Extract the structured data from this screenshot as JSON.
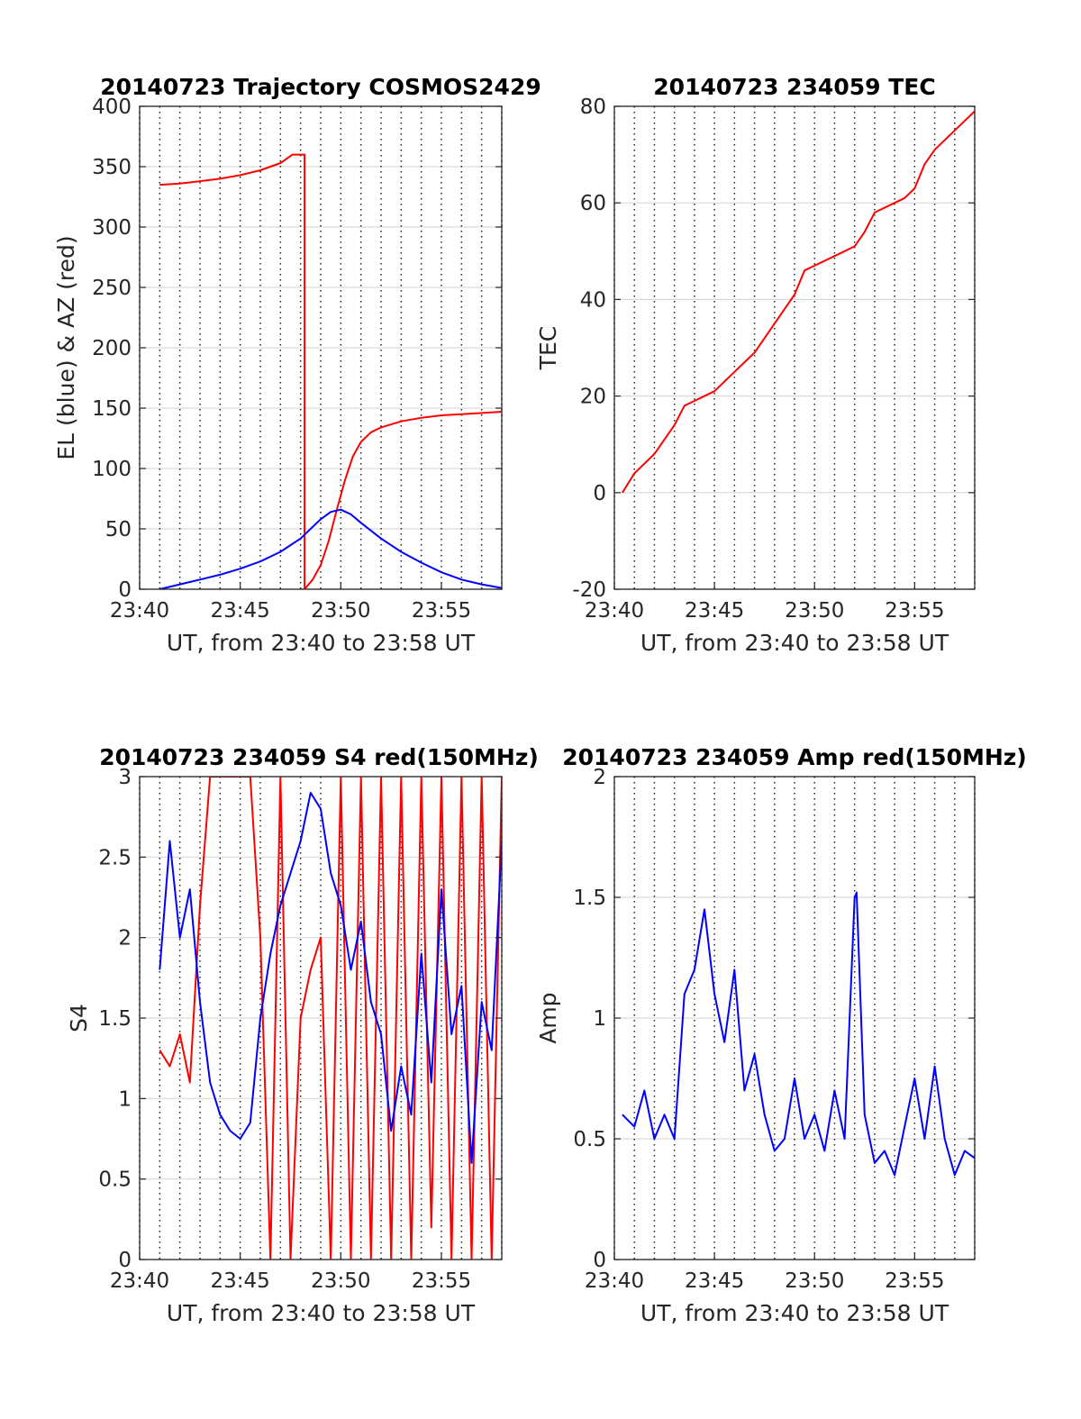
{
  "colors": {
    "az": "#ff0000",
    "el": "#0000ff",
    "tec": "#ff0000",
    "s4_red": "#ff0000",
    "s4_blue": "#0000ff",
    "amp": "#0000ff",
    "grid": "#d9d9d9",
    "frame": "#262626"
  },
  "chart_data": [
    {
      "type": "line",
      "title": "20140723 Trajectory COSMOS2429",
      "xlabel": "UT, from 23:40 to 23:58 UT",
      "ylabel": "EL (blue) & AZ (red)",
      "x_unit": "minutes after 23:40 UT",
      "xlim": [
        0,
        18
      ],
      "ylim": [
        0,
        400
      ],
      "xticks": [
        0,
        5,
        10,
        15
      ],
      "xticklabels": [
        "23:40",
        "23:45",
        "23:50",
        "23:55"
      ],
      "yticks": [
        0,
        50,
        100,
        150,
        200,
        250,
        300,
        350,
        400
      ],
      "yticklabels": [
        "0",
        "50",
        "100",
        "150",
        "200",
        "250",
        "300",
        "350",
        "400"
      ],
      "grid": "x dotted every minute, y solid",
      "series": [
        {
          "name": "AZ",
          "color": "#ff0000",
          "x": [
            1,
            2,
            3,
            4,
            5,
            6,
            7,
            7.6,
            8.2,
            8.2,
            8.6,
            9,
            9.4,
            9.8,
            10.2,
            10.6,
            11,
            11.5,
            12,
            13,
            14,
            15,
            16,
            17,
            18
          ],
          "values": [
            335,
            336,
            338,
            340,
            343,
            347,
            353,
            360,
            360,
            0,
            8,
            20,
            40,
            66,
            90,
            110,
            122,
            130,
            134,
            139,
            142,
            144,
            145,
            146,
            147
          ]
        },
        {
          "name": "EL",
          "color": "#0000ff",
          "x": [
            1,
            2,
            3,
            4,
            5,
            6,
            7,
            8,
            8.5,
            9,
            9.5,
            10,
            10.5,
            11,
            12,
            13,
            14,
            15,
            16,
            17,
            18
          ],
          "values": [
            0,
            4,
            8,
            12,
            17,
            23,
            31,
            42,
            50,
            58,
            64,
            66,
            62,
            55,
            42,
            31,
            22,
            14,
            8,
            4,
            1
          ]
        }
      ]
    },
    {
      "type": "line",
      "title": "20140723 234059 TEC",
      "xlabel": "UT, from 23:40 to 23:58 UT",
      "ylabel": "TEC",
      "x_unit": "minutes after 23:40 UT",
      "xlim": [
        0,
        18
      ],
      "ylim": [
        -20,
        80
      ],
      "xticks": [
        0,
        5,
        10,
        15
      ],
      "xticklabels": [
        "23:40",
        "23:45",
        "23:50",
        "23:55"
      ],
      "yticks": [
        -20,
        0,
        20,
        40,
        60,
        80
      ],
      "yticklabels": [
        "-20",
        "0",
        "20",
        "40",
        "60",
        "80"
      ],
      "grid": "x dotted every minute, y solid",
      "series": [
        {
          "name": "TEC",
          "color": "#ff0000",
          "x": [
            0.4,
            1,
            2,
            3,
            3.5,
            4,
            5,
            6,
            7,
            8,
            8.5,
            9,
            9.5,
            10,
            11,
            11.5,
            12,
            12.5,
            13,
            14,
            14.5,
            15,
            15.5,
            16,
            17,
            18
          ],
          "values": [
            0,
            4,
            8,
            14,
            18,
            19,
            21,
            25,
            29,
            35,
            38,
            41,
            46,
            47,
            49,
            50,
            51,
            54,
            58,
            60,
            61,
            63,
            68,
            71,
            75,
            79
          ]
        }
      ]
    },
    {
      "type": "line",
      "title": "20140723 234059 S4 red(150MHz)",
      "xlabel": "UT, from 23:40 to 23:58 UT",
      "ylabel": "S4",
      "x_unit": "minutes after 23:40 UT",
      "xlim": [
        0,
        18
      ],
      "ylim": [
        0,
        3
      ],
      "xticks": [
        0,
        5,
        10,
        15
      ],
      "xticklabels": [
        "23:40",
        "23:45",
        "23:50",
        "23:55"
      ],
      "yticks": [
        0,
        0.5,
        1,
        1.5,
        2,
        2.5,
        3
      ],
      "yticklabels": [
        "0",
        "0.5",
        "1",
        "1.5",
        "2",
        "2.5",
        "3"
      ],
      "grid": "x dotted every minute, y solid",
      "series": [
        {
          "name": "red",
          "color": "#ff0000",
          "x": [
            1,
            1.5,
            2,
            2.5,
            3,
            3.5,
            4,
            4.5,
            5,
            5.5,
            6,
            6.5,
            7,
            7.5,
            8,
            8.5,
            9,
            9.5,
            10,
            10.5,
            11,
            11.5,
            12,
            12.5,
            13,
            13.5,
            14,
            14.5,
            15,
            15.5,
            16,
            16.5,
            17,
            17.5,
            18
          ],
          "values": [
            1.3,
            1.2,
            1.4,
            1.1,
            2.2,
            3,
            3,
            3,
            3,
            3,
            2.0,
            0,
            3,
            0,
            1.5,
            1.8,
            2.0,
            0,
            3,
            0,
            3,
            0,
            3,
            0,
            3,
            0,
            3,
            0.2,
            3,
            0,
            3,
            0,
            3,
            0,
            3
          ]
        },
        {
          "name": "blue",
          "color": "#0000ff",
          "x": [
            1,
            1.5,
            2,
            2.5,
            3,
            3.5,
            4,
            4.5,
            5,
            5.5,
            6,
            6.5,
            7,
            7.5,
            8,
            8.5,
            9,
            9.5,
            10,
            10.5,
            11,
            11.5,
            12,
            12.5,
            13,
            13.5,
            14,
            14.5,
            15,
            15.5,
            16,
            16.5,
            17,
            17.5,
            18
          ],
          "values": [
            1.8,
            2.6,
            2.0,
            2.3,
            1.6,
            1.1,
            0.9,
            0.8,
            0.75,
            0.85,
            1.5,
            1.9,
            2.2,
            2.4,
            2.6,
            2.9,
            2.8,
            2.4,
            2.2,
            1.8,
            2.1,
            1.6,
            1.4,
            0.8,
            1.2,
            0.9,
            1.9,
            1.1,
            2.3,
            1.4,
            1.7,
            0.6,
            1.6,
            1.3,
            2.6
          ]
        }
      ]
    },
    {
      "type": "line",
      "title": "20140723 234059 Amp red(150MHz)",
      "xlabel": "UT, from 23:40 to 23:58 UT",
      "ylabel": "Amp",
      "x_unit": "minutes after 23:40 UT",
      "xlim": [
        0,
        18
      ],
      "ylim": [
        0,
        2
      ],
      "xticks": [
        0,
        5,
        10,
        15
      ],
      "xticklabels": [
        "23:40",
        "23:45",
        "23:50",
        "23:55"
      ],
      "yticks": [
        0,
        0.5,
        1,
        1.5,
        2
      ],
      "yticklabels": [
        "0",
        "0.5",
        "1",
        "1.5",
        "2"
      ],
      "grid": "x dotted every minute, y solid",
      "series": [
        {
          "name": "Amp",
          "color": "#0000ff",
          "x": [
            0.4,
            1,
            1.5,
            2,
            2.5,
            3,
            3.5,
            4,
            4.5,
            5,
            5.5,
            6,
            6.5,
            7,
            7.5,
            8,
            8.5,
            9,
            9.5,
            10,
            10.5,
            11,
            11.5,
            12,
            12.1,
            12.5,
            13,
            13.5,
            14,
            14.5,
            15,
            15.5,
            16,
            16.5,
            17,
            17.5,
            18
          ],
          "values": [
            0.6,
            0.55,
            0.7,
            0.5,
            0.6,
            0.5,
            1.1,
            1.2,
            1.45,
            1.1,
            0.9,
            1.2,
            0.7,
            0.85,
            0.6,
            0.45,
            0.5,
            0.75,
            0.5,
            0.6,
            0.45,
            0.7,
            0.5,
            1.5,
            1.52,
            0.6,
            0.4,
            0.45,
            0.35,
            0.55,
            0.75,
            0.5,
            0.8,
            0.5,
            0.35,
            0.45,
            0.42
          ]
        }
      ]
    }
  ]
}
